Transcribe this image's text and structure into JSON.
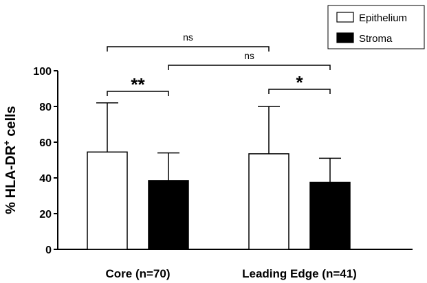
{
  "chart_data": {
    "type": "bar",
    "title": "",
    "xlabel": "",
    "ylabel": "% HLA-DR",
    "ylabel_superscript": "+",
    "ylabel_suffix": " cells",
    "ylim": [
      0,
      100
    ],
    "yticks": [
      "0",
      "20",
      "40",
      "60",
      "80",
      "100"
    ],
    "grid": false,
    "legend_position": "top-right",
    "categories": [
      "Core (n=70)",
      "Leading Edge (n=41)"
    ],
    "series": [
      {
        "name": "Epithelium",
        "fill": "#ffffff",
        "values": [
          54.5,
          53.5
        ],
        "errors_upper": [
          82,
          80
        ]
      },
      {
        "name": "Stroma",
        "fill": "#000000",
        "values": [
          38.5,
          37.5
        ],
        "errors_upper": [
          54,
          51
        ]
      }
    ],
    "annotations": [
      {
        "label": "**",
        "from": [
          0,
          0
        ],
        "to": [
          0,
          1
        ]
      },
      {
        "label": "*",
        "from": [
          1,
          0
        ],
        "to": [
          1,
          1
        ]
      },
      {
        "label": "ns",
        "from": [
          0,
          1
        ],
        "to": [
          1,
          1
        ]
      },
      {
        "label": "ns",
        "from": [
          0,
          0
        ],
        "to": [
          1,
          0
        ]
      }
    ]
  }
}
